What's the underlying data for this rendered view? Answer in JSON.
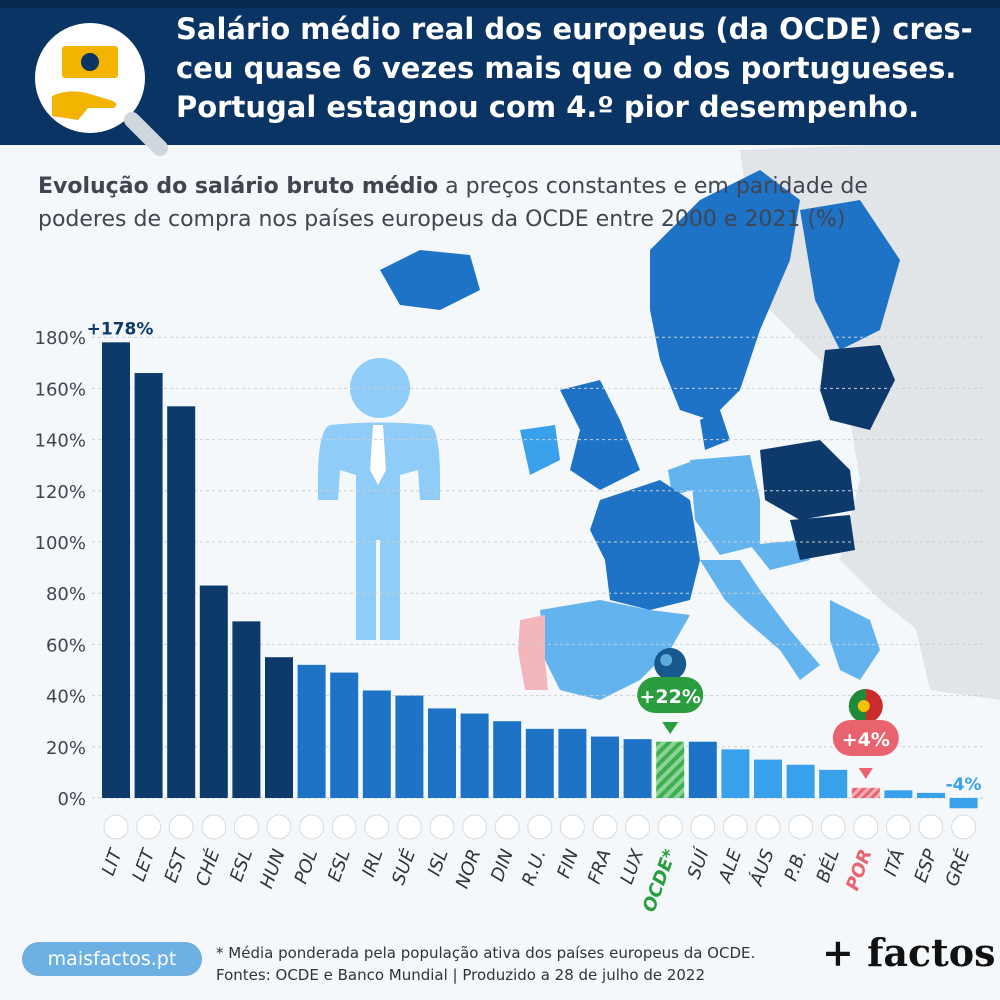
{
  "header": {
    "headline_line1": "Salário médio real dos europeus (da OCDE) cres-",
    "headline_line2": "ceu quase 6 vezes mais que o dos portugueses.",
    "headline_line3": "Portugal estagnou com 4.º pior desempenho."
  },
  "subtitle": {
    "bold": "Evolução do salário bruto médio",
    "rest": " a preços constantes e em paridade de poderes de compra nos países europeus da OCDE entre 2000 e 2021 (%)"
  },
  "colors": {
    "dark": "#0d3a6b",
    "medium": "#1f73c7",
    "light": "#39a0ec",
    "oecd_green": "#2a9d3f",
    "portugal_red": "#e8636e",
    "header_bg": "#0a3463"
  },
  "chart_data": {
    "type": "bar",
    "ylim": [
      0,
      180
    ],
    "yticks": [
      0,
      20,
      40,
      60,
      80,
      100,
      120,
      140,
      160,
      180
    ],
    "ytick_labels": [
      "0%",
      "20%",
      "40%",
      "60%",
      "80%",
      "100%",
      "120%",
      "140%",
      "160%",
      "180%"
    ],
    "categories": [
      "LIT",
      "LET",
      "EST",
      "CHÉ",
      "ESL",
      "HUN",
      "POL",
      "ESL",
      "IRL",
      "SUÉ",
      "ISL",
      "NOR",
      "DIN",
      "R.U.",
      "FIN",
      "FRA",
      "LUX",
      "OCDE*",
      "SUÍ",
      "ALE",
      "ÁUS",
      "P.B.",
      "BÉL",
      "POR",
      "ITÁ",
      "ESP",
      "GRÉ"
    ],
    "values": [
      178,
      166,
      153,
      83,
      69,
      55,
      52,
      49,
      42,
      40,
      35,
      33,
      30,
      27,
      27,
      24,
      23,
      22,
      22,
      19,
      15,
      13,
      11,
      4,
      3,
      2,
      -4
    ],
    "tiers": [
      "dark",
      "dark",
      "dark",
      "dark",
      "dark",
      "dark",
      "medium",
      "medium",
      "medium",
      "medium",
      "medium",
      "medium",
      "medium",
      "medium",
      "medium",
      "medium",
      "medium",
      "oecd",
      "medium",
      "light",
      "light",
      "light",
      "light",
      "portugal",
      "light",
      "light",
      "light"
    ],
    "labels": {
      "top": "+178%",
      "oecd": "+22%",
      "portugal": "+4%",
      "negative": "-4%"
    },
    "flags": [
      "lithuania-flag",
      "latvia-flag",
      "estonia-flag",
      "czechia-flag",
      "slovakia-flag",
      "hungary-flag",
      "poland-flag",
      "slovenia-flag",
      "ireland-flag",
      "sweden-flag",
      "iceland-flag",
      "norway-flag",
      "denmark-flag",
      "uk-flag",
      "finland-flag",
      "france-flag",
      "luxembourg-flag",
      "globe-icon",
      "switzerland-flag",
      "germany-flag",
      "austria-flag",
      "netherlands-flag",
      "belgium-flag",
      "portugal-flag",
      "italy-flag",
      "spain-flag",
      "greece-flag"
    ]
  },
  "footer": {
    "site": "maisfactos.pt",
    "note_line1": "* Média ponderada pela população ativa dos países europeus da OCDE.",
    "note_line2": "Fontes: OCDE e Banco Mundial | Produzido a 28 de julho de 2022",
    "brand": "+ factos"
  }
}
